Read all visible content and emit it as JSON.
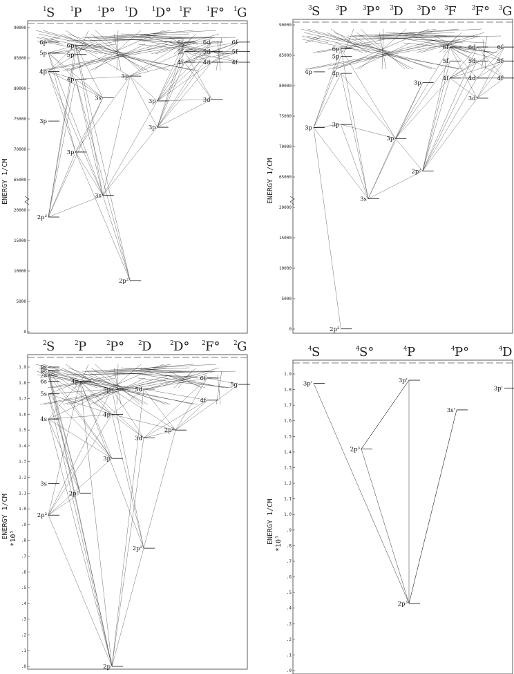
{
  "panels": [
    {
      "id": "p1",
      "terms": [
        {
          "mult": "1",
          "letter": "S"
        },
        {
          "mult": "1",
          "letter": "P"
        },
        {
          "mult": "1",
          "letter": "P°"
        },
        {
          "mult": "1",
          "letter": "D"
        },
        {
          "mult": "1",
          "letter": "D°"
        },
        {
          "mult": "1",
          "letter": "F"
        },
        {
          "mult": "1",
          "letter": "F°"
        },
        {
          "mult": "1",
          "letter": "G"
        }
      ],
      "y_label": "ENERGY 1/CM",
      "y_scale": "",
      "ticks": [
        "90000",
        "85000",
        "80000",
        "75000",
        "70000",
        "65000",
        "20000",
        "15000",
        "10000",
        "5000",
        "0"
      ],
      "levels": [
        {
          "label": "6p",
          "col": 0,
          "v": 0.06
        },
        {
          "label": "5p",
          "col": 0,
          "v": 0.095
        },
        {
          "label": "4p",
          "col": 0,
          "v": 0.155
        },
        {
          "label": "3p",
          "col": 0,
          "v": 0.315
        },
        {
          "label": "2p²",
          "col": 0,
          "v": 0.625
        },
        {
          "label": "6p",
          "col": 1,
          "v": 0.07
        },
        {
          "label": "5p",
          "col": 1,
          "v": 0.1
        },
        {
          "label": "4p",
          "col": 1,
          "v": 0.18
        },
        {
          "label": "3p",
          "col": 1,
          "v": 0.415
        },
        {
          "label": "3s",
          "col": 2,
          "v": 0.24
        },
        {
          "label": "3s",
          "col": 2,
          "v": 0.555
        },
        {
          "label": "3p",
          "col": 3,
          "v": 0.17
        },
        {
          "label": "2p²",
          "col": 3,
          "v": 0.83
        },
        {
          "label": "3p",
          "col": 4,
          "v": 0.335
        },
        {
          "label": "3p",
          "col": 4,
          "v": 0.25
        },
        {
          "label": "6f",
          "col": 5,
          "v": 0.06
        },
        {
          "label": "5f",
          "col": 5,
          "v": 0.09
        },
        {
          "label": "4f",
          "col": 5,
          "v": 0.125
        },
        {
          "label": "6d",
          "col": 6,
          "v": 0.06
        },
        {
          "label": "5d",
          "col": 6,
          "v": 0.09
        },
        {
          "label": "4d",
          "col": 6,
          "v": 0.125
        },
        {
          "label": "3d",
          "col": 6,
          "v": 0.245
        },
        {
          "label": "6f",
          "col": 7,
          "v": 0.06
        },
        {
          "label": "5f",
          "col": 7,
          "v": 0.09
        },
        {
          "label": "4f",
          "col": 7,
          "v": 0.125
        }
      ]
    },
    {
      "id": "p2",
      "terms": [
        {
          "mult": "3",
          "letter": "S"
        },
        {
          "mult": "3",
          "letter": "P"
        },
        {
          "mult": "3",
          "letter": "P°"
        },
        {
          "mult": "3",
          "letter": "D"
        },
        {
          "mult": "3",
          "letter": "D°"
        },
        {
          "mult": "3",
          "letter": "F"
        },
        {
          "mult": "3",
          "letter": "F°"
        },
        {
          "mult": "3",
          "letter": "G"
        }
      ],
      "y_label": "ENERGY 1/CM",
      "y_scale": "",
      "ticks": [
        "90000",
        "85000",
        "80000",
        "75000",
        "70000",
        "65000",
        "20000",
        "15000",
        "10000",
        "5000",
        "0"
      ],
      "levels": [
        {
          "label": "4p",
          "col": 0,
          "v": 0.165
        },
        {
          "label": "3p",
          "col": 0,
          "v": 0.345
        },
        {
          "label": "6p",
          "col": 1,
          "v": 0.09
        },
        {
          "label": "5p",
          "col": 1,
          "v": 0.115
        },
        {
          "label": "4p",
          "col": 1,
          "v": 0.17
        },
        {
          "label": "3p",
          "col": 1,
          "v": 0.335
        },
        {
          "label": "2p²",
          "col": 1,
          "v": 0.995
        },
        {
          "label": "3s",
          "col": 2,
          "v": 0.575
        },
        {
          "label": "3p",
          "col": 3,
          "v": 0.38
        },
        {
          "label": "3p",
          "col": 4,
          "v": 0.2
        },
        {
          "label": "2p²",
          "col": 4,
          "v": 0.485
        },
        {
          "label": "6f",
          "col": 5,
          "v": 0.085
        },
        {
          "label": "5f",
          "col": 5,
          "v": 0.13
        },
        {
          "label": "4f",
          "col": 5,
          "v": 0.185
        },
        {
          "label": "6d",
          "col": 6,
          "v": 0.085
        },
        {
          "label": "5d",
          "col": 6,
          "v": 0.13
        },
        {
          "label": "4d",
          "col": 6,
          "v": 0.185
        },
        {
          "label": "3d",
          "col": 6,
          "v": 0.25
        },
        {
          "label": "6f",
          "col": 7,
          "v": 0.085
        },
        {
          "label": "5f",
          "col": 7,
          "v": 0.13
        },
        {
          "label": "4f",
          "col": 7,
          "v": 0.185
        }
      ]
    },
    {
      "id": "p3",
      "terms": [
        {
          "mult": "2",
          "letter": "S"
        },
        {
          "mult": "2",
          "letter": "P"
        },
        {
          "mult": "2",
          "letter": "P°"
        },
        {
          "mult": "2",
          "letter": "D"
        },
        {
          "mult": "2",
          "letter": "D°"
        },
        {
          "mult": "2",
          "letter": "F°"
        },
        {
          "mult": "2",
          "letter": "G"
        }
      ],
      "y_label": "ENERGY 1/CM",
      "y_scale": "*10⁵",
      "ticks": [
        "1.9",
        "1.8",
        "1.7",
        "1.6",
        "1.5",
        "1.4",
        "1.3",
        "1.2",
        "1.1",
        "1.0",
        ".9",
        ".8",
        ".7",
        ".6",
        ".5",
        ".4",
        ".3",
        ".2",
        ".1",
        ".0"
      ],
      "levels": [
        {
          "label": "9s",
          "col": 0,
          "v": 1.9
        },
        {
          "label": "8s",
          "col": 0,
          "v": 1.88
        },
        {
          "label": "7s",
          "col": 0,
          "v": 1.85
        },
        {
          "label": "6s",
          "col": 0,
          "v": 1.81
        },
        {
          "label": "5s",
          "col": 0,
          "v": 1.73
        },
        {
          "label": "4s",
          "col": 0,
          "v": 1.57
        },
        {
          "label": "3s",
          "col": 0,
          "v": 1.16
        },
        {
          "label": "2p²",
          "col": 0,
          "v": 0.96
        },
        {
          "label": "4p",
          "col": 1,
          "v": 1.81
        },
        {
          "label": "2p²",
          "col": 1,
          "v": 1.1
        },
        {
          "label": "5p",
          "col": 2,
          "v": 1.76
        },
        {
          "label": "4p",
          "col": 2,
          "v": 1.6
        },
        {
          "label": "3p",
          "col": 2,
          "v": 1.32
        },
        {
          "label": "5d",
          "col": 3,
          "v": 1.76
        },
        {
          "label": "3d",
          "col": 3,
          "v": 1.45
        },
        {
          "label": "2p²",
          "col": 3,
          "v": 0.75
        },
        {
          "label": "2p²",
          "col": 4,
          "v": 1.5
        },
        {
          "label": "6f",
          "col": 5,
          "v": 1.83
        },
        {
          "label": "4f",
          "col": 5,
          "v": 1.69
        },
        {
          "label": "5g",
          "col": 6,
          "v": 1.79
        },
        {
          "label": "2p",
          "col": 2,
          "v": 0.0
        }
      ]
    },
    {
      "id": "p4",
      "terms": [
        {
          "mult": "4",
          "letter": "S"
        },
        {
          "mult": "4",
          "letter": "S°"
        },
        {
          "mult": "4",
          "letter": "P"
        },
        {
          "mult": "4",
          "letter": "P°"
        },
        {
          "mult": "4",
          "letter": "D"
        }
      ],
      "y_label": "ENERGY 1/CM",
      "y_scale": "*10⁵",
      "ticks": [
        "1.9",
        "1.8",
        "1.7",
        "1.6",
        "1.5",
        "1.4",
        "1.3",
        "1.2",
        "1.1",
        "1.0",
        ".9",
        ".8",
        ".7",
        ".6",
        ".5",
        ".4",
        ".3",
        ".2",
        ".1",
        ".0"
      ],
      "levels": [
        {
          "label": "3p'",
          "col": 0,
          "v": 1.84
        },
        {
          "label": "2p³",
          "col": 1,
          "v": 1.42
        },
        {
          "label": "3p'",
          "col": 2,
          "v": 1.86
        },
        {
          "label": "2p³",
          "col": 2,
          "v": 0.43
        },
        {
          "label": "3s'",
          "col": 3,
          "v": 1.67
        },
        {
          "label": "3p'",
          "col": 4,
          "v": 1.81
        }
      ],
      "transitions": [
        [
          0,
          4
        ],
        [
          1,
          2
        ],
        [
          1,
          3
        ],
        [
          2,
          4
        ],
        [
          3,
          4
        ],
        [
          3,
          5
        ],
        [
          4,
          3
        ],
        [
          1,
          5
        ]
      ]
    }
  ]
}
